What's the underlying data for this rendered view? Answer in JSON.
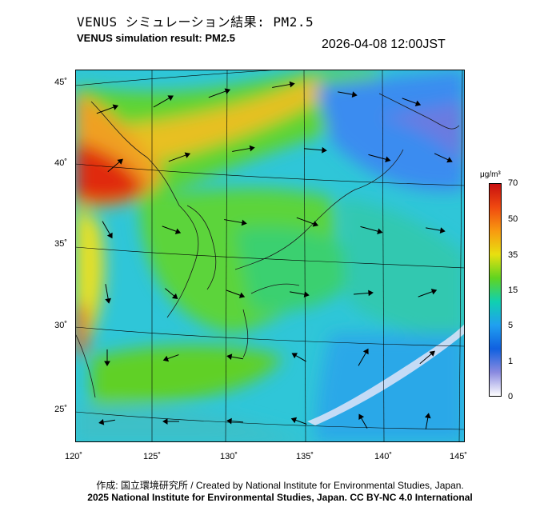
{
  "header": {
    "title_ja": "VENUS シミュレーション結果: PM2.5",
    "title_en": "VENUS simulation result: PM2.5",
    "datetime": "2026-04-08 12:00JST"
  },
  "map": {
    "lat_ticks": [
      "45˚",
      "40˚",
      "35˚",
      "30˚",
      "25˚"
    ],
    "lon_ticks": [
      "120˚",
      "125˚",
      "130˚",
      "135˚",
      "140˚",
      "145˚"
    ],
    "colors": {
      "land_outline": "#222222",
      "wind_arrow": "#000000",
      "grid_line": "#000000"
    }
  },
  "colorbar": {
    "unit": "μg/m³",
    "ticks": [
      "70",
      "50",
      "35",
      "15",
      "5",
      "1",
      "0"
    ],
    "stops": [
      "#c81010",
      "#f04a10",
      "#f89a10",
      "#e8e010",
      "#60d420",
      "#10d0b0",
      "#20a0f0",
      "#1060e0",
      "#8a8ae0",
      "#ffffff"
    ]
  },
  "footer": {
    "credit": "作成: 国立環境研究所 / Created by National Institute for Environmental Studies, Japan.",
    "copyright": "2025 National Institute for Environmental Studies, Japan. CC BY-NC 4.0 International"
  }
}
